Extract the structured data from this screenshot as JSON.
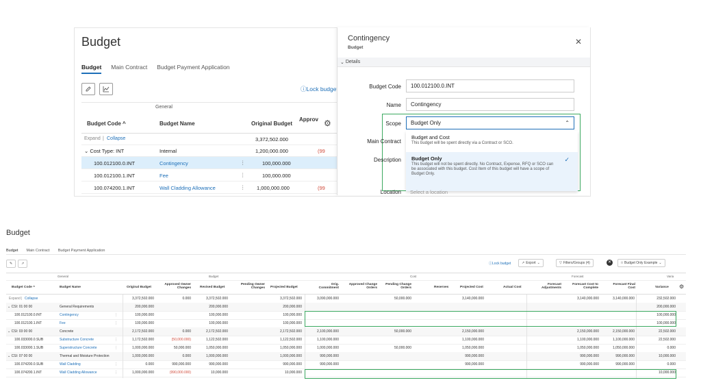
{
  "top": {
    "title": "Budget",
    "tabs": [
      "Budget",
      "Main Contract",
      "Budget Payment Application"
    ],
    "lock_label": "Lock budget",
    "group_header": "General",
    "columns": {
      "code": "Budget Code",
      "name": "Budget Name",
      "original": "Original Budget",
      "approved": "Approv"
    },
    "expand": "Expand",
    "collapse": "Collapse",
    "total_original": "3,372,502.000",
    "rows": [
      {
        "code": "Cost Type: INT",
        "name": "Internal",
        "original": "1,200,000.000",
        "extra": "(99"
      },
      {
        "code": "100.012100.0.INT",
        "name": "Contingency",
        "original": "100,000.000",
        "extra": ""
      },
      {
        "code": "100.012100.1.INT",
        "name": "Fee",
        "original": "100,000.000",
        "extra": ""
      },
      {
        "code": "100.074200.1.INT",
        "name": "Wall Cladding Allowance",
        "original": "1,000,000.000",
        "extra": "(99"
      }
    ]
  },
  "side": {
    "title": "Contingency",
    "subtitle": "Budget",
    "details_label": "Details",
    "fields": {
      "budget_code_label": "Budget Code",
      "budget_code_value": "100.012100.0.INT",
      "name_label": "Name",
      "name_value": "Contingency",
      "scope_label": "Scope",
      "scope_value": "Budget Only",
      "main_contract_label": "Main Contract",
      "description_label": "Description",
      "location_label": "Location",
      "location_placeholder": "Select a location"
    },
    "options": [
      {
        "title": "Budget and Cost",
        "desc": "This budget will be spent directly via a Contract or SCO."
      },
      {
        "title": "Budget Only",
        "desc": "This budget will not be spent directly. No Contract, Expense, RFQ or SCO can be associated with this budget. Cost Item of this budget will have a scope of Budget Only."
      }
    ]
  },
  "bottom": {
    "title": "Budget",
    "tabs": [
      "Budget",
      "Main Contract",
      "Budget Payment Application"
    ],
    "lock_label": "Lock budget",
    "export_label": "Export",
    "filters_label": "Filters/Groups (4)",
    "view_label": "Budget Only Example",
    "groups": [
      "General",
      "Budget",
      "Cost",
      "Forecast",
      "Varia"
    ],
    "columns": [
      "Budget Code",
      "Budget Name",
      "Original Budget",
      "Approved Owner Changes",
      "Revised Budget",
      "Pending Owner Changes",
      "Projected Budget",
      "Orig. Commitment",
      "Approved Change Orders",
      "Pending Change Orders",
      "Reserves",
      "Projected Cost",
      "Actual Cost",
      "Forecast Adjustments",
      "Forecast Cost to Complete",
      "Forecast Final Cost",
      "Variance"
    ],
    "expand": "Expand",
    "collapse": "Collapse",
    "totals": [
      "3,372,502.000",
      "0.000",
      "3,372,502.000",
      "",
      "3,372,502.000",
      "3,090,000.000",
      "",
      "50,000.000",
      "",
      "3,140,000.000",
      "",
      "",
      "3,140,000.000",
      "3,140,000.000",
      "232,502.000"
    ],
    "rows": [
      {
        "code": "CSI: 01 00 00",
        "name": "General Requirements",
        "group": true,
        "vals": [
          "200,000.000",
          "",
          "200,000.000",
          "",
          "200,000.000",
          "",
          "",
          "",
          "",
          "",
          "",
          "",
          "",
          "",
          "200,000.000"
        ]
      },
      {
        "code": "100.012100.0.INT",
        "name": "Contingency",
        "group": false,
        "vals": [
          "100,000.000",
          "",
          "100,000.000",
          "",
          "100,000.000",
          "",
          "",
          "",
          "",
          "",
          "",
          "",
          "",
          "",
          "100,000.000"
        ]
      },
      {
        "code": "100.012100.1.INT",
        "name": "Fee",
        "group": false,
        "vals": [
          "100,000.000",
          "",
          "100,000.000",
          "",
          "100,000.000",
          "",
          "",
          "",
          "",
          "",
          "",
          "",
          "",
          "",
          "100,000.000"
        ]
      },
      {
        "code": "CSI: 03 00 00",
        "name": "Concrete",
        "group": true,
        "vals": [
          "2,172,502.000",
          "0.000",
          "2,172,502.000",
          "",
          "2,172,502.000",
          "2,100,000.000",
          "",
          "50,000.000",
          "",
          "2,150,000.000",
          "",
          "",
          "2,150,000.000",
          "2,150,000.000",
          "22,502.000"
        ]
      },
      {
        "code": "100.033000.0.SUB",
        "name": "Substructure Concrete",
        "group": false,
        "vals": [
          "1,172,502.000",
          "(50,000.000)",
          "1,122,502.000",
          "",
          "1,122,502.000",
          "1,100,000.000",
          "",
          "",
          "",
          "1,100,000.000",
          "",
          "",
          "1,100,000.000",
          "1,100,000.000",
          "22,502.000"
        ]
      },
      {
        "code": "100.033000.1.SUB",
        "name": "Superstructure Concrete",
        "group": false,
        "vals": [
          "1,000,000.000",
          "50,000.000",
          "1,050,000.000",
          "",
          "1,050,000.000",
          "1,000,000.000",
          "",
          "50,000.000",
          "",
          "1,050,000.000",
          "",
          "",
          "1,050,000.000",
          "1,050,000.000",
          "0.000"
        ]
      },
      {
        "code": "CSI: 07 00 00",
        "name": "Thermal and Moisture Protection",
        "group": true,
        "vals": [
          "1,000,000.000",
          "0.000",
          "1,000,000.000",
          "",
          "1,000,000.000",
          "990,000.000",
          "",
          "",
          "",
          "990,000.000",
          "",
          "",
          "990,000.000",
          "990,000.000",
          "10,000.000"
        ]
      },
      {
        "code": "100.074200.0.SUB",
        "name": "Wall Cladding",
        "group": false,
        "vals": [
          "0.000",
          "990,000.000",
          "990,000.000",
          "",
          "990,000.000",
          "990,000.000",
          "",
          "",
          "",
          "990,000.000",
          "",
          "",
          "990,000.000",
          "990,000.000",
          "0.000"
        ]
      },
      {
        "code": "100.074200.1.INT",
        "name": "Wall Cladding Allowance",
        "group": false,
        "vals": [
          "1,000,000.000",
          "(990,000.000)",
          "10,000.000",
          "",
          "10,000.000",
          "",
          "",
          "",
          "",
          "",
          "",
          "",
          "",
          "",
          "10,000.000"
        ]
      }
    ]
  }
}
